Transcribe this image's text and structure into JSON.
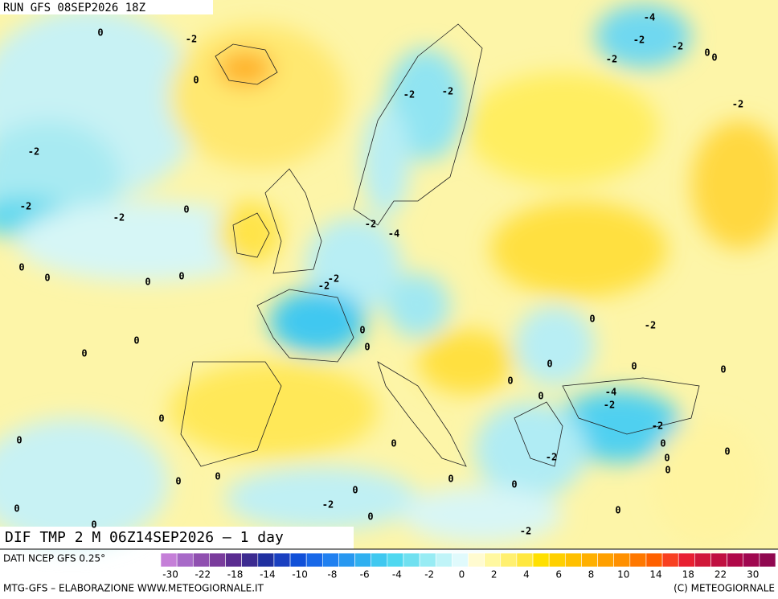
{
  "header": {
    "run": "RUN GFS 08SEP2026 18Z",
    "field": "DIF TMP 2 M 06Z14SEP2026 – 1 day"
  },
  "footer": {
    "source": "DATI NCEP GFS 0.25°",
    "credit": "MTG-GFS – ELABORAZIONE WWW.METEOGIORNALE.IT",
    "copyright": "(C) METEOGIORNALE"
  },
  "contour_labels": [
    "0",
    "-2",
    "0",
    "-2",
    "-2",
    "-2",
    "0",
    "0",
    "0",
    "0",
    "0",
    "0",
    "0",
    "-4",
    "-2",
    "-2",
    "0",
    "0",
    "-2",
    "-2",
    "-2",
    "-2",
    "-2",
    "-4",
    "-2",
    "-2",
    "0",
    "0",
    "0",
    "-2",
    "0",
    "0",
    "0",
    "0",
    "0",
    "-4",
    "-2",
    "-2",
    "0",
    "0",
    "0",
    "-2",
    "0",
    "0",
    "0",
    "0",
    "-2",
    "0",
    "-2",
    "0",
    "0",
    "0",
    "0",
    "0",
    "0",
    "0",
    "0"
  ],
  "colorbar": {
    "colors": [
      "#c57fd8",
      "#a86ac8",
      "#9050b0",
      "#7a3c9c",
      "#5a2c90",
      "#3c2a90",
      "#2030a0",
      "#1a40c0",
      "#1050d8",
      "#1868e8",
      "#2080f0",
      "#2898f0",
      "#30b0f0",
      "#40c8f0",
      "#50d8f0",
      "#70e0f0",
      "#98ecf4",
      "#c0f4f8",
      "#e0fafc",
      "#fffbd0",
      "#fff8a0",
      "#fff070",
      "#ffe840",
      "#ffe000",
      "#ffd000",
      "#ffc000",
      "#ffb000",
      "#ffa000",
      "#ff9000",
      "#ff7800",
      "#ff6000",
      "#f84020",
      "#e82030",
      "#d01838",
      "#c01040",
      "#b00848",
      "#a00850",
      "#900850"
    ],
    "ticks": [
      -30,
      -22,
      -18,
      -14,
      -10,
      -8,
      -6,
      -4,
      -2,
      0,
      2,
      4,
      6,
      8,
      10,
      14,
      18,
      22,
      30
    ]
  }
}
